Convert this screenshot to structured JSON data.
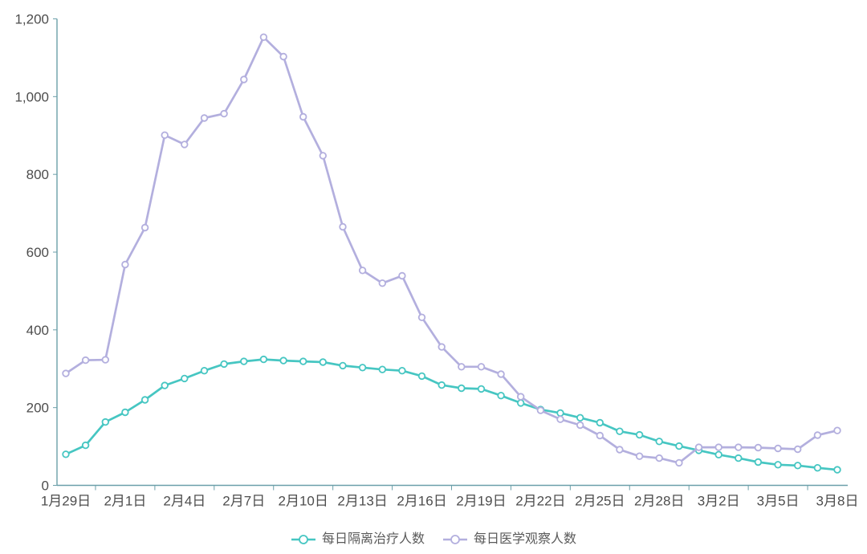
{
  "chart_data": {
    "type": "line",
    "title": "",
    "xlabel": "",
    "ylabel": "",
    "categories": [
      "1月29日",
      "1月30日",
      "1月31日",
      "2月1日",
      "2月2日",
      "2月3日",
      "2月4日",
      "2月5日",
      "2月6日",
      "2月7日",
      "2月8日",
      "2月9日",
      "2月10日",
      "2月11日",
      "2月12日",
      "2月13日",
      "2月14日",
      "2月15日",
      "2月16日",
      "2月17日",
      "2月18日",
      "2月19日",
      "2月20日",
      "2月21日",
      "2月22日",
      "2月23日",
      "2月24日",
      "2月25日",
      "2月26日",
      "2月27日",
      "2月28日",
      "2月29日",
      "3月1日",
      "3月2日",
      "3月3日",
      "3月4日",
      "3月5日",
      "3月6日",
      "3月7日",
      "3月8日"
    ],
    "x_label_interval": 3,
    "x_tick_labels_shown": [
      "1月29日",
      "2月1日",
      "2月4日",
      "2月7日",
      "2月10日",
      "2月13日",
      "2月16日",
      "2月19日",
      "2月22日",
      "2月25日",
      "2月28日",
      "3月2日",
      "3月5日",
      "3月8日"
    ],
    "series": [
      {
        "name": "每日隔离治疗人数",
        "color": "#46c6c2",
        "values": [
          80,
          103,
          163,
          188,
          220,
          257,
          275,
          295,
          312,
          319,
          324,
          321,
          319,
          317,
          308,
          303,
          298,
          295,
          281,
          258,
          250,
          248,
          231,
          212,
          195,
          186,
          174,
          161,
          139,
          130,
          113,
          101,
          90,
          79,
          70,
          60,
          53,
          51,
          45,
          40
        ]
      },
      {
        "name": "每日医学观察人数",
        "color": "#b3afde",
        "values": [
          288,
          322,
          323,
          568,
          663,
          901,
          877,
          945,
          956,
          1044,
          1153,
          1103,
          948,
          848,
          665,
          553,
          520,
          539,
          432,
          356,
          305,
          305,
          286,
          228,
          193,
          170,
          155,
          128,
          92,
          75,
          70,
          58,
          98,
          98,
          98,
          97,
          95,
          93,
          129,
          141
        ]
      }
    ],
    "ylim": [
      0,
      1200
    ],
    "y_ticks": [
      0,
      200,
      400,
      600,
      800,
      1000,
      1200
    ],
    "y_tick_labels": [
      "0",
      "200",
      "400",
      "600",
      "800",
      "1,000",
      "1,200"
    ],
    "grid": false,
    "legend_position": "bottom-center",
    "marker": "hollow-circle",
    "axis_color": "#6b9fa9",
    "label_color": "#4d4d4d"
  }
}
